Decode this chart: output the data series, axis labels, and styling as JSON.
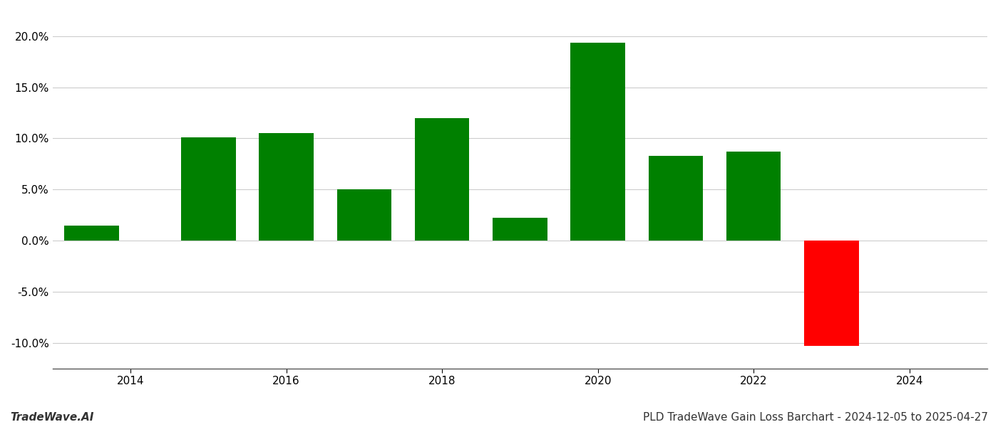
{
  "years": [
    2013.5,
    2015.0,
    2016.0,
    2017.0,
    2018.0,
    2019.0,
    2020.0,
    2021.0,
    2022.0,
    2023.0
  ],
  "values": [
    1.5,
    10.1,
    10.5,
    5.0,
    12.0,
    2.2,
    19.4,
    8.3,
    8.7,
    -10.3
  ],
  "bar_colors": [
    "#008000",
    "#008000",
    "#008000",
    "#008000",
    "#008000",
    "#008000",
    "#008000",
    "#008000",
    "#008000",
    "#ff0000"
  ],
  "xlim": [
    2013.0,
    2025.0
  ],
  "ylim": [
    -12.5,
    22.5
  ],
  "yticks": [
    -10.0,
    -5.0,
    0.0,
    5.0,
    10.0,
    15.0,
    20.0
  ],
  "xticks": [
    2014,
    2016,
    2018,
    2020,
    2022,
    2024
  ],
  "title_left": "TradeWave.AI",
  "title_right": "PLD TradeWave Gain Loss Barchart - 2024-12-05 to 2025-04-27",
  "title_fontsize": 11,
  "background_color": "#ffffff",
  "grid_color": "#cccccc",
  "bar_width": 0.7
}
